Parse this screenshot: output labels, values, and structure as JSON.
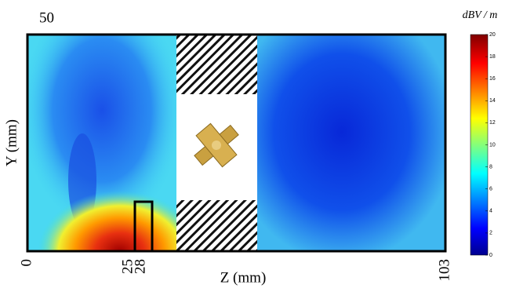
{
  "chart_data": {
    "type": "heatmap",
    "x_label": "Z (mm)",
    "y_label": "Y (mm)",
    "xlim": [
      0,
      103
    ],
    "xticks": [
      0,
      25,
      28,
      103
    ],
    "ylim": [
      0,
      50
    ],
    "yticks": [
      50
    ],
    "colorbar": {
      "label": "dBV / m",
      "lim": [
        0,
        20
      ],
      "ticks": [
        0,
        2,
        4,
        6,
        8,
        10,
        12,
        14,
        16,
        18,
        20
      ]
    }
  }
}
